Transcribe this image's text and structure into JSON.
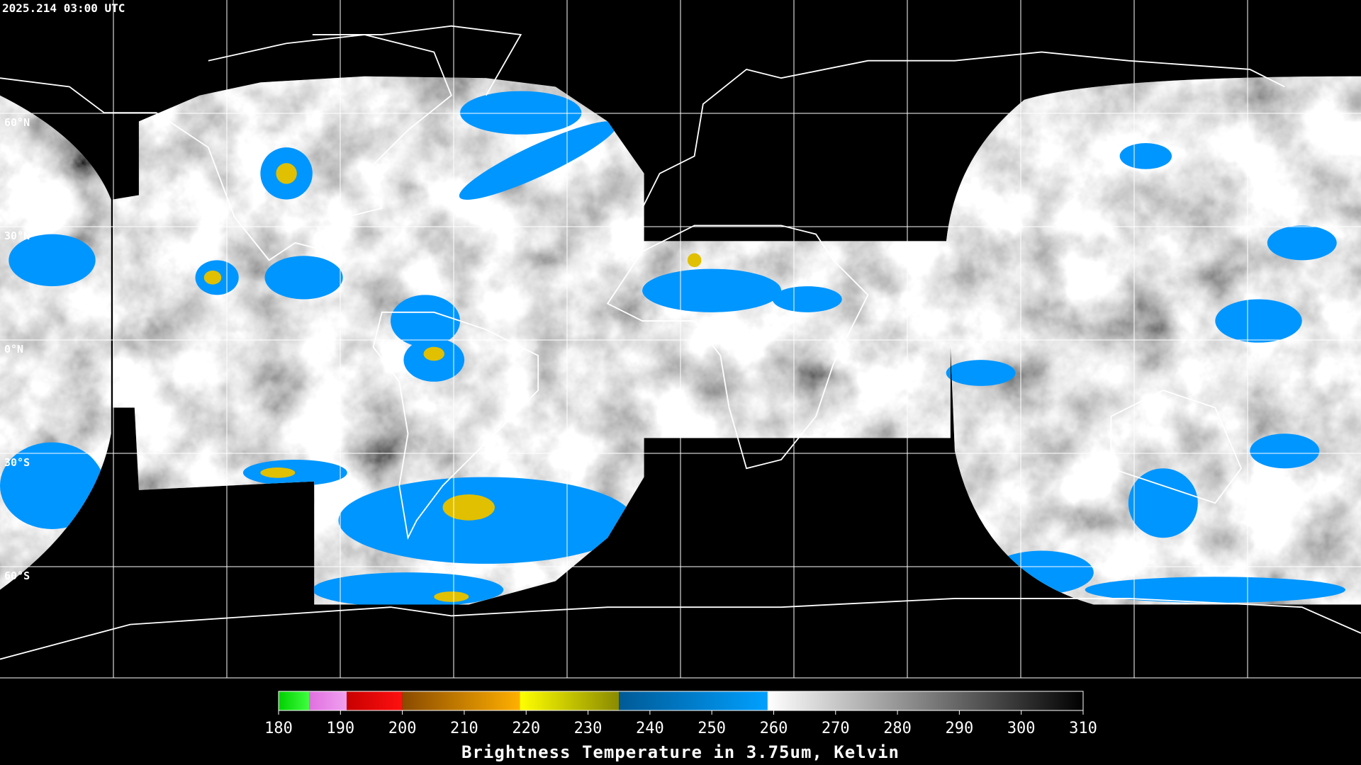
{
  "header": {
    "timestamp": "2025.214 03:00 UTC"
  },
  "map": {
    "latitude_labels": [
      "60°N",
      "30°N",
      "0°N",
      "30°S",
      "60°S"
    ]
  },
  "colorbar": {
    "range": [
      180,
      310
    ],
    "ticks": [
      180,
      190,
      200,
      210,
      220,
      230,
      240,
      250,
      260,
      270,
      280,
      290,
      300,
      310
    ],
    "segments": [
      {
        "from": 180,
        "to": 185,
        "colors": [
          "#00d000",
          "#40ff40"
        ]
      },
      {
        "from": 185,
        "to": 191,
        "colors": [
          "#e070e0",
          "#f0a0f0"
        ]
      },
      {
        "from": 191,
        "to": 200,
        "colors": [
          "#c80000",
          "#ff1010"
        ]
      },
      {
        "from": 200,
        "to": 219,
        "colors": [
          "#8a4a00",
          "#ffb000"
        ]
      },
      {
        "from": 219,
        "to": 235,
        "colors": [
          "#ffff00",
          "#8a8a00"
        ]
      },
      {
        "from": 235,
        "to": 259,
        "colors": [
          "#005a96",
          "#00a0ff"
        ]
      },
      {
        "from": 259,
        "to": 310,
        "colors": [
          "#ffffff",
          "#000000"
        ]
      }
    ],
    "title": "Brightness Temperature in 3.75um, Kelvin"
  }
}
